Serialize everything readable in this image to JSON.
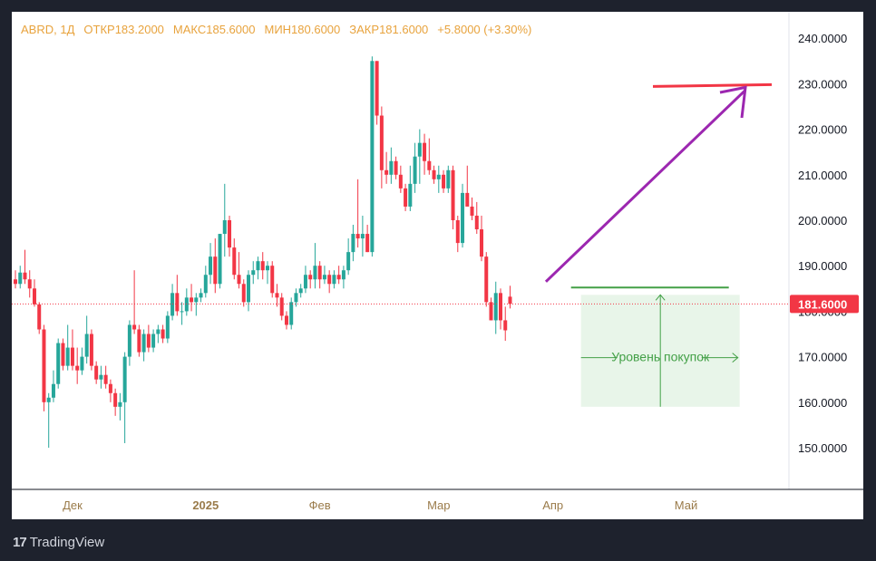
{
  "legend": {
    "symbol": "ABRD, 1Д",
    "open_label": "ОТКР",
    "open": "183.2000",
    "high_label": "МАКС",
    "high": "185.6000",
    "low_label": "МИН",
    "low": "180.6000",
    "close_label": "ЗАКР",
    "close": "181.6000",
    "change": "+5.8000 (+3.30%)"
  },
  "footer": {
    "logo": "17",
    "brand": "TradingView"
  },
  "chart_data": {
    "type": "candlestick",
    "ylim": [
      140,
      248
    ],
    "y_ticks": [
      "240.0000",
      "230.0000",
      "220.0000",
      "210.0000",
      "200.0000",
      "190.0000",
      "170.0000",
      "160.0000",
      "150.0000"
    ],
    "y_tick_values": [
      240,
      230,
      220,
      210,
      200,
      190,
      170,
      160,
      150
    ],
    "x_labels": [
      {
        "label": "Дек",
        "index": 12,
        "bold": false
      },
      {
        "label": "2025",
        "index": 40,
        "bold": true
      },
      {
        "label": "Фев",
        "index": 64,
        "bold": false
      },
      {
        "label": "Мар",
        "index": 89,
        "bold": false
      },
      {
        "label": "Апр",
        "index": 113,
        "bold": false
      },
      {
        "label": "Май",
        "index": 141,
        "bold": false
      }
    ],
    "last_price": {
      "value": 181.6,
      "label": "181.6000",
      "partially_hidden_tick": "180.0000"
    },
    "colors": {
      "up": "#26a69a",
      "down": "#f23645",
      "price_line": "#f23645",
      "target": "#f23645",
      "arrow": "#9c27b0",
      "buy": "#43a047",
      "buy_zone": "#e8f5e9",
      "axis_text": "#131722",
      "legend": "#e8a33d"
    },
    "annotations": {
      "buy_zone_label": "Уровень покупок",
      "buy_level": 185.2,
      "buy_zone_range": [
        159,
        183.6
      ],
      "target_level": 229.8,
      "arrow_from": [
        186.5
      ],
      "arrow_to": [
        228.6
      ]
    },
    "candles": [
      [
        187.0,
        189.0,
        185.0,
        186.0
      ],
      [
        186.0,
        190.0,
        185.0,
        188.5
      ],
      [
        188.5,
        193.5,
        186.0,
        187.0
      ],
      [
        187.0,
        189.0,
        183.0,
        185.0
      ],
      [
        185.0,
        187.0,
        181.0,
        181.5
      ],
      [
        181.5,
        182.0,
        175.0,
        176.0
      ],
      [
        176.0,
        177.0,
        158.0,
        160.0
      ],
      [
        160.0,
        162.0,
        150.0,
        161.0
      ],
      [
        161.0,
        167.0,
        160.0,
        164.0
      ],
      [
        164.0,
        174.0,
        163.0,
        173.0
      ],
      [
        173.0,
        174.0,
        167.0,
        168.0
      ],
      [
        168.0,
        177.0,
        167.0,
        172.0
      ],
      [
        172.0,
        176.0,
        167.0,
        168.0
      ],
      [
        168.0,
        172.0,
        164.0,
        167.0
      ],
      [
        167.0,
        172.0,
        166.0,
        170.0
      ],
      [
        170.0,
        179.0,
        168.5,
        175.0
      ],
      [
        175.0,
        176.0,
        167.0,
        168.0
      ],
      [
        168.0,
        169.0,
        164.0,
        165.0
      ],
      [
        165.0,
        168.0,
        163.0,
        166.0
      ],
      [
        166.0,
        168.0,
        163.0,
        164.0
      ],
      [
        164.0,
        165.0,
        160.0,
        162.0
      ],
      [
        162.0,
        163.0,
        157.0,
        159.0
      ],
      [
        159.0,
        162.0,
        156.0,
        160.0
      ],
      [
        160.0,
        171.0,
        151.0,
        170.0
      ],
      [
        170.0,
        178.0,
        168.0,
        177.0
      ],
      [
        177.0,
        189.0,
        175.0,
        176.0
      ],
      [
        176.0,
        177.0,
        170.0,
        171.0
      ],
      [
        171.0,
        176.0,
        169.0,
        175.0
      ],
      [
        175.0,
        177.0,
        171.0,
        172.0
      ],
      [
        172.0,
        176.0,
        171.0,
        175.0
      ],
      [
        175.0,
        177.0,
        173.0,
        176.0
      ],
      [
        176.0,
        177.0,
        173.0,
        174.0
      ],
      [
        174.0,
        180.0,
        173.0,
        179.0
      ],
      [
        179.0,
        186.0,
        178.0,
        184.0
      ],
      [
        184.0,
        188.0,
        179.0,
        180.0
      ],
      [
        180.0,
        182.0,
        177.0,
        180.0
      ],
      [
        180.0,
        185.0,
        179.0,
        183.0
      ],
      [
        183.0,
        186.0,
        180.0,
        182.0
      ],
      [
        182.0,
        184.0,
        179.0,
        183.0
      ],
      [
        183.0,
        185.0,
        182.0,
        184.0
      ],
      [
        184.0,
        190.0,
        183.0,
        188.0
      ],
      [
        188.0,
        195.0,
        186.0,
        192.0
      ],
      [
        192.0,
        196.0,
        184.0,
        186.0
      ],
      [
        186.0,
        197.0,
        185.0,
        197.0
      ],
      [
        197.0,
        208.0,
        192.0,
        200.0
      ],
      [
        200.0,
        201.0,
        192.0,
        194.0
      ],
      [
        194.0,
        196.0,
        187.0,
        188.0
      ],
      [
        188.0,
        193.0,
        185.0,
        186.0
      ],
      [
        186.0,
        187.0,
        181.0,
        182.0
      ],
      [
        182.0,
        189.0,
        180.0,
        188.0
      ],
      [
        188.0,
        191.0,
        186.0,
        189.0
      ],
      [
        189.0,
        192.0,
        187.0,
        191.0
      ],
      [
        191.0,
        193.0,
        187.0,
        189.0
      ],
      [
        189.0,
        191.0,
        186.0,
        190.0
      ],
      [
        190.0,
        191.0,
        183.0,
        184.0
      ],
      [
        184.0,
        186.0,
        181.0,
        183.0
      ],
      [
        183.0,
        184.0,
        178.0,
        179.0
      ],
      [
        179.0,
        180.0,
        176.0,
        177.0
      ],
      [
        177.0,
        183.0,
        176.0,
        182.0
      ],
      [
        182.0,
        185.0,
        181.0,
        184.0
      ],
      [
        184.0,
        186.0,
        183.0,
        185.0
      ],
      [
        185.0,
        190.0,
        184.0,
        188.0
      ],
      [
        188.0,
        189.0,
        185.0,
        187.0
      ],
      [
        187.0,
        195.0,
        185.0,
        190.0
      ],
      [
        190.0,
        191.0,
        185.0,
        187.0
      ],
      [
        187.0,
        190.0,
        186.0,
        188.0
      ],
      [
        188.0,
        189.0,
        184.0,
        186.0
      ],
      [
        186.0,
        189.0,
        185.0,
        188.0
      ],
      [
        188.0,
        190.0,
        186.0,
        187.0
      ],
      [
        187.0,
        190.0,
        185.0,
        189.0
      ],
      [
        189.0,
        196.0,
        188.0,
        193.0
      ],
      [
        193.0,
        199.0,
        191.0,
        197.0
      ],
      [
        197.0,
        209.0,
        194.0,
        196.0
      ],
      [
        196.0,
        201.0,
        192.0,
        197.0
      ],
      [
        197.0,
        199.0,
        193.0,
        193.0
      ],
      [
        193.0,
        236.0,
        192.0,
        235.0
      ],
      [
        235.0,
        235.0,
        221.0,
        223.0
      ],
      [
        223.0,
        225.0,
        207.0,
        211.0
      ],
      [
        211.0,
        215.0,
        208.0,
        210.0
      ],
      [
        210.0,
        216.0,
        208.0,
        213.0
      ],
      [
        213.0,
        214.0,
        209.0,
        210.0
      ],
      [
        210.0,
        212.0,
        206.0,
        207.0
      ],
      [
        207.0,
        208.0,
        202.0,
        203.0
      ],
      [
        203.0,
        212.0,
        202.0,
        208.0
      ],
      [
        208.0,
        217.0,
        206.0,
        214.0
      ],
      [
        214.0,
        220.0,
        208.0,
        217.0
      ],
      [
        217.0,
        219.0,
        210.0,
        213.0
      ],
      [
        213.0,
        218.0,
        210.0,
        211.0
      ],
      [
        211.0,
        212.0,
        208.0,
        209.0
      ],
      [
        209.0,
        212.0,
        206.0,
        210.0
      ],
      [
        210.0,
        211.0,
        206.0,
        207.0
      ],
      [
        207.0,
        212.0,
        206.0,
        211.0
      ],
      [
        211.0,
        212.0,
        198.0,
        200.0
      ],
      [
        200.0,
        201.0,
        193.0,
        195.0
      ],
      [
        195.0,
        208.0,
        194.0,
        206.0
      ],
      [
        206.0,
        212.0,
        204.0,
        203.0
      ],
      [
        203.0,
        205.0,
        200.0,
        201.0
      ],
      [
        201.0,
        204.0,
        197.0,
        198.0
      ],
      [
        198.0,
        201.0,
        191.0,
        192.0
      ],
      [
        192.0,
        193.0,
        181.0,
        182.0
      ],
      [
        182.0,
        183.0,
        178.0,
        178.0
      ],
      [
        178.0,
        186.5,
        175.0,
        184.0
      ],
      [
        184.0,
        185.0,
        176.0,
        178.0
      ],
      [
        178.0,
        181.0,
        173.5,
        175.8
      ],
      [
        183.2,
        185.6,
        180.6,
        181.6
      ]
    ]
  }
}
